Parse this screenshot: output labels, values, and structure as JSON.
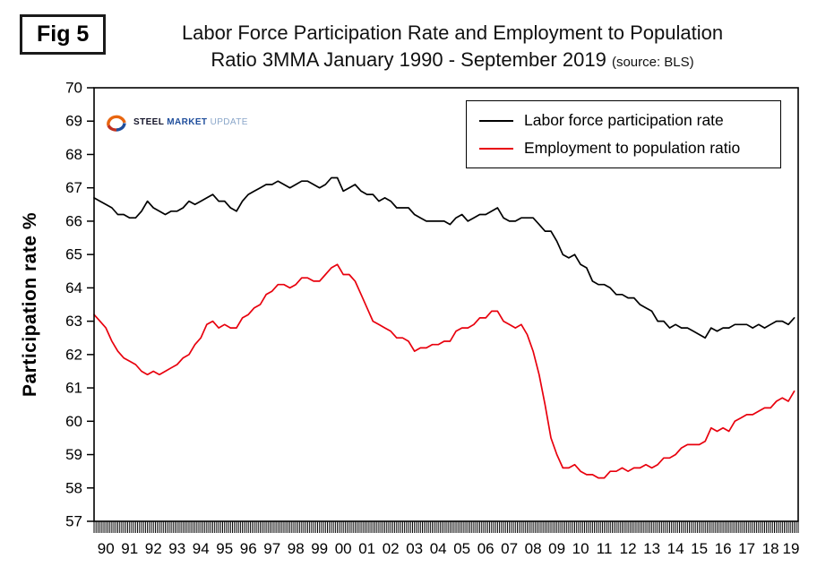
{
  "figure_label": "Fig 5",
  "title": {
    "line1": "Labor Force Participation Rate and Employment to Population",
    "line2": "Ratio 3MMA January 1990 - September 2019",
    "source": "(source: BLS)"
  },
  "y_axis_title": "Participation rate %",
  "logo": {
    "steel": "STEEL",
    "market": "MARKET",
    "update": "UPDATE"
  },
  "legend": [
    {
      "label": "Labor force participation rate",
      "color": "#000000"
    },
    {
      "label": "Employment to population ratio",
      "color": "#e8000d"
    }
  ],
  "chart_data": {
    "type": "line",
    "title": "Labor Force Participation Rate and Employment to Population Ratio 3MMA January 1990 - September 2019",
    "xlabel": "",
    "ylabel": "Participation rate %",
    "ylim": [
      57,
      70
    ],
    "y_ticks": [
      57,
      58,
      59,
      60,
      61,
      62,
      63,
      64,
      65,
      66,
      67,
      68,
      69,
      70
    ],
    "x_range": [
      1990.0,
      2019.667
    ],
    "x_step_years": 0.25,
    "x_tick_labels": [
      "90",
      "91",
      "92",
      "93",
      "94",
      "95",
      "96",
      "97",
      "98",
      "99",
      "00",
      "01",
      "02",
      "03",
      "04",
      "05",
      "06",
      "07",
      "08",
      "09",
      "10",
      "11",
      "12",
      "13",
      "14",
      "15",
      "16",
      "17",
      "18",
      "19"
    ],
    "grid": false,
    "legend_position": "top-right-inside",
    "series": [
      {
        "name": "Labor force participation rate",
        "color": "#000000",
        "values": [
          66.7,
          66.6,
          66.5,
          66.4,
          66.2,
          66.2,
          66.1,
          66.1,
          66.3,
          66.6,
          66.4,
          66.3,
          66.2,
          66.3,
          66.3,
          66.4,
          66.6,
          66.5,
          66.6,
          66.7,
          66.8,
          66.6,
          66.6,
          66.4,
          66.3,
          66.6,
          66.8,
          66.9,
          67.0,
          67.1,
          67.1,
          67.2,
          67.1,
          67.0,
          67.1,
          67.2,
          67.2,
          67.1,
          67.0,
          67.1,
          67.3,
          67.3,
          66.9,
          67.0,
          67.1,
          66.9,
          66.8,
          66.8,
          66.6,
          66.7,
          66.6,
          66.4,
          66.4,
          66.4,
          66.2,
          66.1,
          66.0,
          66.0,
          66.0,
          66.0,
          65.9,
          66.1,
          66.2,
          66.0,
          66.1,
          66.2,
          66.2,
          66.3,
          66.4,
          66.1,
          66.0,
          66.0,
          66.1,
          66.1,
          66.1,
          65.9,
          65.7,
          65.7,
          65.4,
          65.0,
          64.9,
          65.0,
          64.7,
          64.6,
          64.2,
          64.1,
          64.1,
          64.0,
          63.8,
          63.8,
          63.7,
          63.7,
          63.5,
          63.4,
          63.3,
          63.0,
          63.0,
          62.8,
          62.9,
          62.8,
          62.8,
          62.7,
          62.6,
          62.5,
          62.8,
          62.7,
          62.8,
          62.8,
          62.9,
          62.9,
          62.9,
          62.8,
          62.9,
          62.8,
          62.9,
          63.0,
          63.0,
          62.9,
          63.1
        ]
      },
      {
        "name": "Employment to population ratio",
        "color": "#e8000d",
        "values": [
          63.2,
          63.0,
          62.8,
          62.4,
          62.1,
          61.9,
          61.8,
          61.7,
          61.5,
          61.4,
          61.5,
          61.4,
          61.5,
          61.6,
          61.7,
          61.9,
          62.0,
          62.3,
          62.5,
          62.9,
          63.0,
          62.8,
          62.9,
          62.8,
          62.8,
          63.1,
          63.2,
          63.4,
          63.5,
          63.8,
          63.9,
          64.1,
          64.1,
          64.0,
          64.1,
          64.3,
          64.3,
          64.2,
          64.2,
          64.4,
          64.6,
          64.7,
          64.4,
          64.4,
          64.2,
          63.8,
          63.4,
          63.0,
          62.9,
          62.8,
          62.7,
          62.5,
          62.5,
          62.4,
          62.1,
          62.2,
          62.2,
          62.3,
          62.3,
          62.4,
          62.4,
          62.7,
          62.8,
          62.8,
          62.9,
          63.1,
          63.1,
          63.3,
          63.3,
          63.0,
          62.9,
          62.8,
          62.9,
          62.6,
          62.1,
          61.4,
          60.5,
          59.5,
          59.0,
          58.6,
          58.6,
          58.7,
          58.5,
          58.4,
          58.4,
          58.3,
          58.3,
          58.5,
          58.5,
          58.6,
          58.5,
          58.6,
          58.6,
          58.7,
          58.6,
          58.7,
          58.9,
          58.9,
          59.0,
          59.2,
          59.3,
          59.3,
          59.3,
          59.4,
          59.8,
          59.7,
          59.8,
          59.7,
          60.0,
          60.1,
          60.2,
          60.2,
          60.3,
          60.4,
          60.4,
          60.6,
          60.7,
          60.6,
          60.9
        ]
      }
    ]
  }
}
